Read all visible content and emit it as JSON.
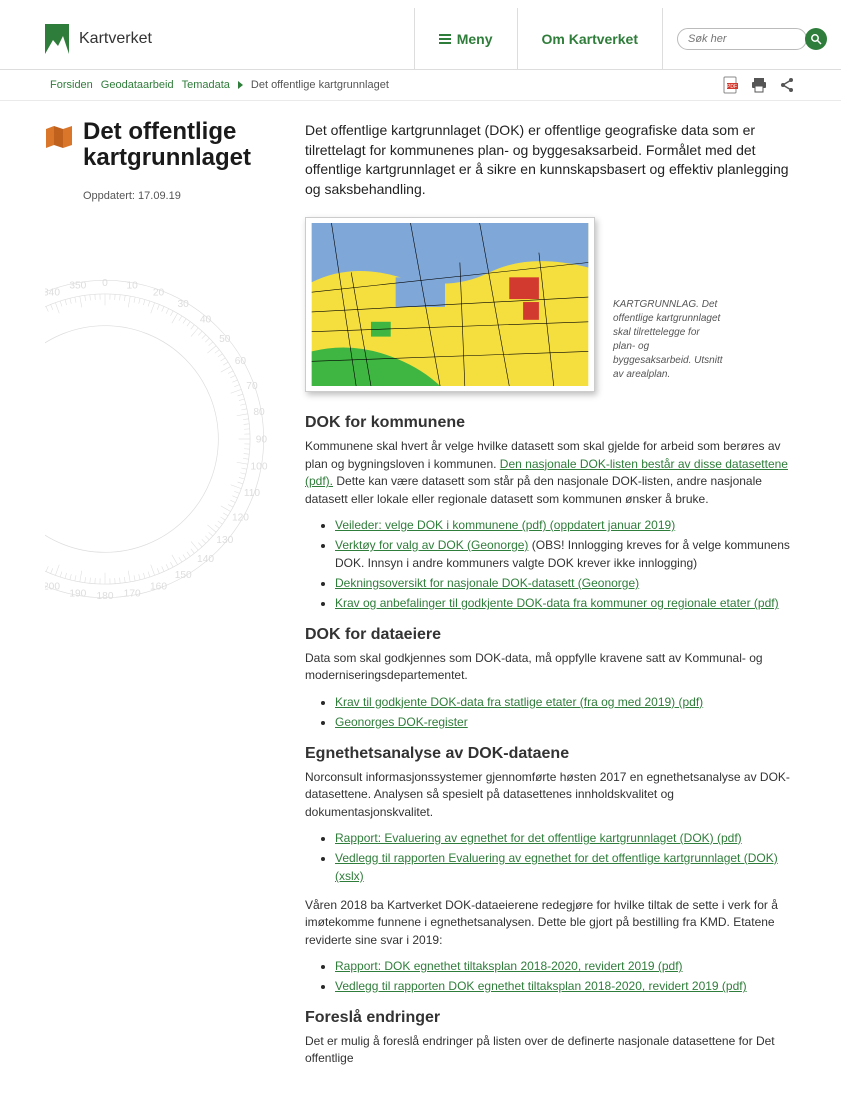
{
  "brand": {
    "name": "Kartverket",
    "accent_color": "#2f7d3a"
  },
  "nav": {
    "menu": "Meny",
    "about": "Om Kartverket",
    "search_placeholder": "Søk her"
  },
  "breadcrumbs": {
    "home": "Forsiden",
    "level1": "Geodataarbeid",
    "level2": "Temadata",
    "current": "Det offentlige kartgrunnlaget"
  },
  "title": "Det offentlige kartgrunnlaget",
  "updated": "Oppdatert: 17.09.19",
  "intro": "Det offentlige kartgrunnlaget (DOK) er offentlige geografiske data som er tilrettelagt for kommunenes plan- og byggesaksarbeid. Formålet med det offentlige kartgrunnlaget er å sikre en kunnskapsbasert og effektiv planlegging og saksbehandling.",
  "figure_caption": "KARTGRUNNLAG. Det offentlige kartgrunnlaget skal tilrettelegge for plan- og byggesaksarbeid. Utsnitt av arealplan.",
  "section_kommunene": {
    "heading": "DOK for kommunene",
    "para_a": "Kommunene skal hvert år velge hvilke datasett som skal gjelde for arbeid som berøres av plan og bygningsloven i kommunen. ",
    "link_inline": "Den nasjonale DOK-listen består av disse datasettene (pdf).",
    "para_b": " Dette kan være datasett som står på den nasjonale DOK-listen, andre nasjonale datasett eller lokale eller regionale datasett som kommunen ønsker å bruke.",
    "links": {
      "l1": "Veileder: velge  DOK i kommunene (pdf) (oppdatert januar 2019)",
      "l2": "Verktøy for valg av DOK (Geonorge)",
      "l2_note": " (OBS! Innlogging kreves for å velge kommunens DOK. Innsyn i andre kommuners valgte DOK krever ikke innlogging)",
      "l3": "Dekningsoversikt for nasjonale DOK-datasett (Geonorge)",
      "l4": "Krav og anbefalinger til godkjente DOK-data fra kommuner og regionale etater (pdf)"
    }
  },
  "section_dataeiere": {
    "heading": "DOK for dataeiere",
    "para": " Data som skal godkjennes som DOK-data, må oppfylle kravene satt av Kommunal- og moderniseringsdepartementet.",
    "links": {
      "l1": "Krav til godkjente DOK-data fra statlige etater (fra og med 2019) (pdf) ",
      "l2": "Geonorges DOK-register"
    }
  },
  "section_egnethet": {
    "heading": "Egnethetsanalyse av DOK-dataene",
    "para_a": "Norconsult informasjonssystemer gjennomførte høsten 2017 en egnethetsanalyse av DOK-datasettene. Analysen så spesielt på datasettenes innholdskvalitet og dokumentasjonskvalitet.",
    "links_a": {
      "l1": "Rapport: Evaluering av egnethet for det offentlige kartgrunnlaget (DOK) (pdf)",
      "l2": "Vedlegg til rapporten Evaluering av egnethet for det offentlige kartgrunnlaget (DOK) (xslx)"
    },
    "para_b": "Våren 2018 ba Kartverket DOK-dataeierene redegjøre for hvilke tiltak de sette i verk for å imøtekomme funnene i egnethetsanalysen. Dette ble gjort på bestilling  fra KMD. Etatene reviderte sine svar i 2019:",
    "links_b": {
      "l1": "Rapport: DOK egnethet tiltaksplan 2018-2020, revidert 2019 (pdf)",
      "l2": "Vedlegg til rapporten DOK egnethet tiltaksplan 2018-2020, revidert 2019 (pdf)"
    }
  },
  "section_endringer": {
    "heading": "Foreslå endringer",
    "para": "Det er mulig å foreslå endringer på listen over de definerte nasjonale datasettene for Det offentlige"
  },
  "map_colors": {
    "bg": "#f5df3f",
    "water": "#7fa8d8",
    "green": "#3fb641",
    "red": "#d33a2f"
  }
}
